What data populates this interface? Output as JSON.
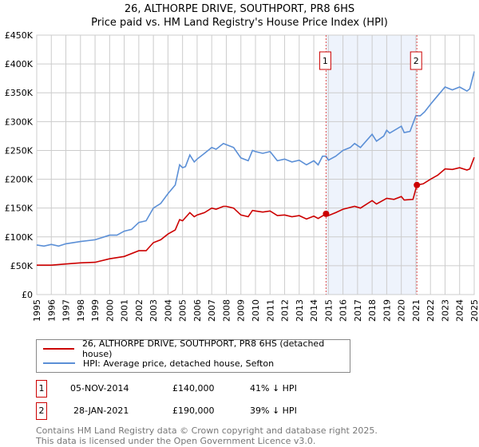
{
  "title": "26, ALTHORPE DRIVE, SOUTHPORT, PR8 6HS",
  "subtitle": "Price paid vs. HM Land Registry's House Price Index (HPI)",
  "chart_data": {
    "type": "line",
    "title": "26, ALTHORPE DRIVE, SOUTHPORT, PR8 6HS",
    "subtitle": "Price paid vs. HM Land Registry's House Price Index (HPI)",
    "xlim": [
      1995,
      2025
    ],
    "ylim": [
      0,
      450000
    ],
    "x_ticks": [
      "1995",
      "1996",
      "1997",
      "1998",
      "1999",
      "2000",
      "2001",
      "2002",
      "2003",
      "2004",
      "2005",
      "2006",
      "2007",
      "2008",
      "2009",
      "2010",
      "2011",
      "2012",
      "2013",
      "2014",
      "2015",
      "2016",
      "2017",
      "2018",
      "2019",
      "2020",
      "2021",
      "2022",
      "2023",
      "2024",
      "2025"
    ],
    "y_ticks": [
      {
        "v": 0,
        "l": "£0"
      },
      {
        "v": 50000,
        "l": "£50K"
      },
      {
        "v": 100000,
        "l": "£100K"
      },
      {
        "v": 150000,
        "l": "£150K"
      },
      {
        "v": 200000,
        "l": "£200K"
      },
      {
        "v": 250000,
        "l": "£250K"
      },
      {
        "v": 300000,
        "l": "£300K"
      },
      {
        "v": 350000,
        "l": "£350K"
      },
      {
        "v": 400000,
        "l": "£400K"
      },
      {
        "v": 450000,
        "l": "£450K"
      }
    ],
    "grid": true,
    "shaded_range": [
      2014.84,
      2021.07
    ],
    "series": [
      {
        "name": "26, ALTHORPE DRIVE, SOUTHPORT, PR8 6HS (detached house)",
        "color": "#cc0000",
        "x": [
          1995,
          1996,
          1997,
          1998,
          1999,
          2000,
          2001,
          2002,
          2002.5,
          2003,
          2003.5,
          2004,
          2004.5,
          2004.8,
          2005,
          2005.5,
          2005.8,
          2006,
          2006.5,
          2007,
          2007.3,
          2007.8,
          2008,
          2008.5,
          2009,
          2009.5,
          2009.8,
          2010,
          2010.5,
          2011,
          2011.5,
          2012,
          2012.5,
          2013,
          2013.5,
          2014,
          2014.3,
          2014.84,
          2015,
          2015.5,
          2016,
          2016.8,
          2017.2,
          2018,
          2018.3,
          2019,
          2019.5,
          2020,
          2020.2,
          2020.8,
          2021.07,
          2021.5,
          2022,
          2022.5,
          2023,
          2023.5,
          2024,
          2024.5,
          2024.7,
          2025
        ],
        "y": [
          51000,
          51000,
          53000,
          55000,
          56000,
          62000,
          66000,
          76000,
          76000,
          90000,
          95000,
          105000,
          112000,
          130000,
          128000,
          142000,
          135000,
          138000,
          142000,
          150000,
          148000,
          153000,
          153000,
          150000,
          138000,
          135000,
          146000,
          145000,
          143000,
          145000,
          137000,
          138000,
          135000,
          137000,
          131000,
          136000,
          132000,
          140000,
          137000,
          142000,
          148000,
          153000,
          150000,
          163000,
          157000,
          167000,
          165000,
          170000,
          164000,
          165000,
          190000,
          192000,
          200000,
          207000,
          218000,
          217000,
          220000,
          216000,
          218000,
          238000
        ]
      },
      {
        "name": "HPI: Average price, detached house, Sefton",
        "color": "#5b8fd6",
        "x": [
          1995,
          1995.5,
          1996,
          1996.5,
          1997,
          1998,
          1999,
          2000,
          2000.5,
          2001,
          2001.5,
          2002,
          2002.5,
          2003,
          2003.5,
          2004,
          2004.5,
          2004.8,
          2005,
          2005.2,
          2005.5,
          2005.8,
          2006,
          2006.5,
          2007,
          2007.3,
          2007.8,
          2008,
          2008.5,
          2009,
          2009.5,
          2009.8,
          2010,
          2010.5,
          2011,
          2011.5,
          2012,
          2012.5,
          2013,
          2013.5,
          2014,
          2014.3,
          2014.6,
          2014.84,
          2015,
          2015.5,
          2016,
          2016.5,
          2016.8,
          2017.2,
          2018,
          2018.3,
          2018.8,
          2019,
          2019.2,
          2020,
          2020.2,
          2020.6,
          2021,
          2021.3,
          2021.6,
          2022,
          2022.5,
          2023,
          2023.5,
          2024,
          2024.5,
          2024.7,
          2025
        ],
        "y": [
          86000,
          84000,
          87000,
          84000,
          88000,
          92000,
          95000,
          103000,
          103000,
          110000,
          113000,
          125000,
          128000,
          150000,
          158000,
          175000,
          190000,
          225000,
          220000,
          222000,
          242000,
          230000,
          235000,
          245000,
          255000,
          252000,
          262000,
          260000,
          255000,
          237000,
          232000,
          250000,
          248000,
          245000,
          248000,
          232000,
          235000,
          230000,
          233000,
          225000,
          232000,
          225000,
          240000,
          240000,
          233000,
          240000,
          250000,
          255000,
          262000,
          255000,
          278000,
          266000,
          275000,
          285000,
          280000,
          292000,
          281000,
          283000,
          310000,
          310000,
          317000,
          330000,
          345000,
          360000,
          355000,
          360000,
          353000,
          357000,
          387000
        ]
      }
    ],
    "annotations": [
      {
        "label": "1",
        "x": 2014.84,
        "y": 140000
      },
      {
        "label": "2",
        "x": 2021.07,
        "y": 190000
      }
    ]
  },
  "legend": [
    {
      "label": "26, ALTHORPE DRIVE, SOUTHPORT, PR8 6HS (detached house)",
      "color": "#cc0000"
    },
    {
      "label": "HPI: Average price, detached house, Sefton",
      "color": "#5b8fd6"
    }
  ],
  "transactions": [
    {
      "num": "1",
      "date": "05-NOV-2014",
      "price": "£140,000",
      "hpi": "41% ↓ HPI"
    },
    {
      "num": "2",
      "date": "28-JAN-2021",
      "price": "£190,000",
      "hpi": "39% ↓ HPI"
    }
  ],
  "footer": {
    "line1": "Contains HM Land Registry data © Crown copyright and database right 2025.",
    "line2": "This data is licensed under the Open Government Licence v3.0."
  }
}
